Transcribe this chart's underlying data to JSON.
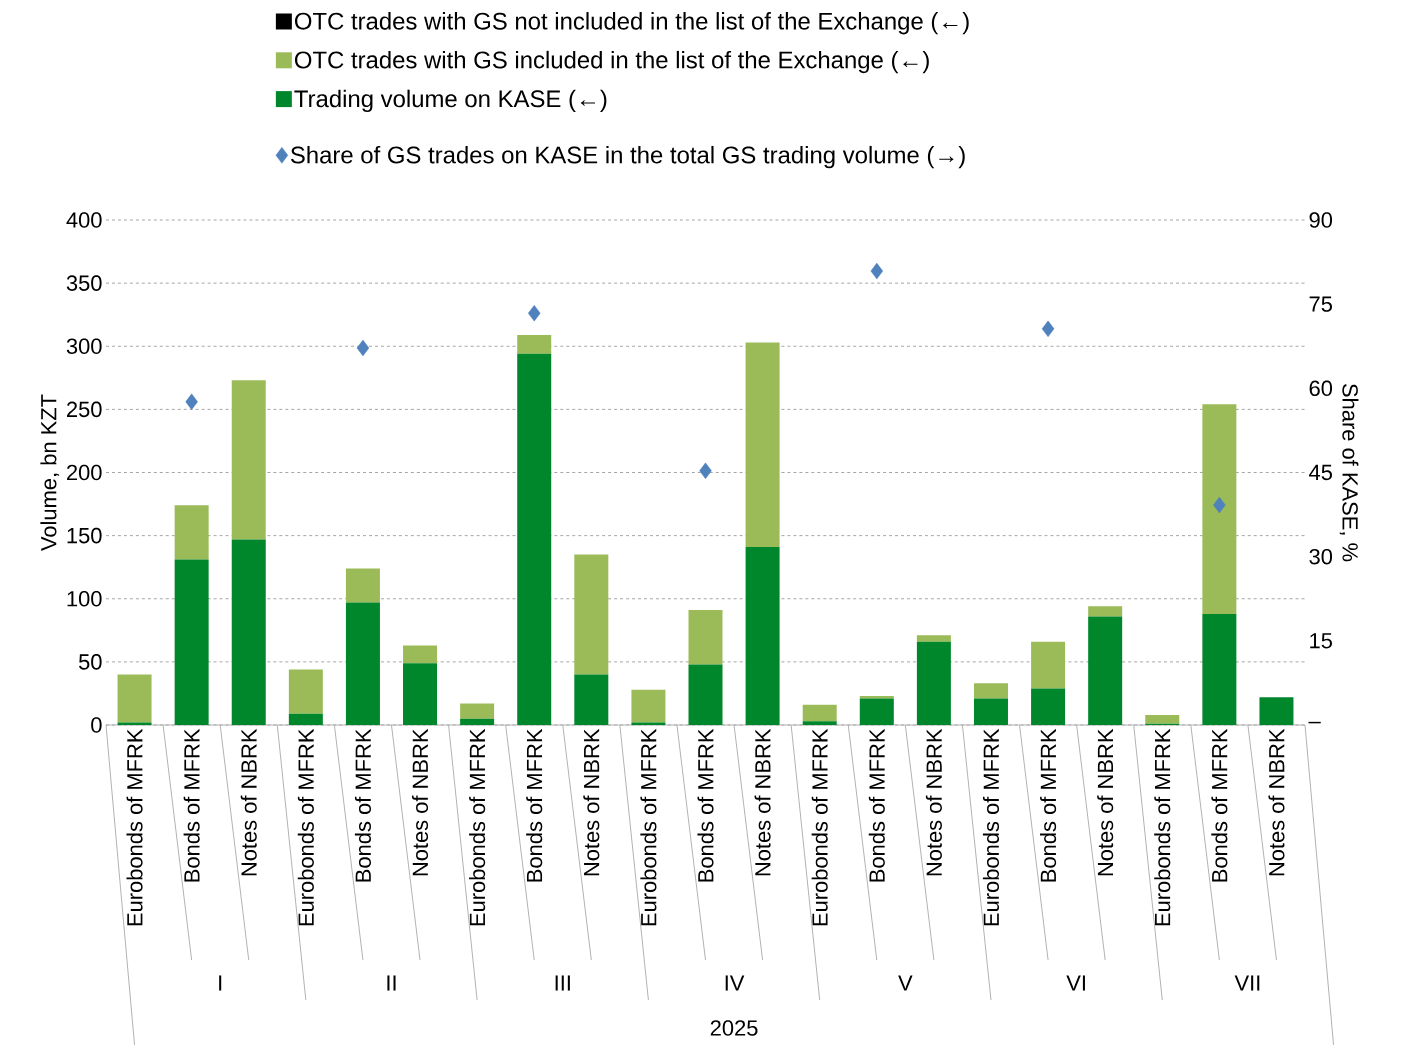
{
  "chart_data": {
    "type": "bar",
    "stacked": true,
    "grid": "y",
    "legend": "top",
    "categories": [
      "Eurobonds of MFRK",
      "Bonds of MFRK",
      "Notes of NBRK",
      "Eurobonds of MFRK",
      "Bonds of MFRK",
      "Notes of NBRK",
      "Eurobonds of MFRK",
      "Bonds of MFRK",
      "Notes of NBRK",
      "Eurobonds of MFRK",
      "Bonds of MFRK",
      "Notes of NBRK",
      "Eurobonds of MFRK",
      "Bonds of MFRK",
      "Notes of NBRK",
      "Eurobonds of MFRK",
      "Bonds of MFRK",
      "Notes of NBRK",
      "Eurobonds of MFRK",
      "Bonds of MFRK",
      "Notes of NBRK"
    ],
    "annotations": [
      "I",
      "II",
      "III",
      "IV",
      "V",
      "VI",
      "VII"
    ],
    "xlabel": "2025",
    "ylabel": "Volume, bn KZT",
    "y2label": "Share of KASE, %",
    "ylim": [
      0,
      400
    ],
    "yticks": [
      0,
      50,
      100,
      150,
      200,
      250,
      300,
      350,
      400
    ],
    "y2lim": [
      0,
      90
    ],
    "y2ticks": [
      {
        "value": 0,
        "label": "–"
      },
      15,
      30,
      45,
      60,
      75,
      90
    ],
    "series": [
      {
        "name": "Trading volume on KASE (←)",
        "color": "#00862b",
        "values": [
          2,
          131,
          147,
          9,
          97,
          49,
          5,
          294,
          40,
          2,
          48,
          141,
          3,
          21,
          66,
          21,
          29,
          86,
          1,
          88,
          22
        ]
      },
      {
        "name": "OTC trades with GS included in the list of the Exchange (←)",
        "color": "#9bbb59",
        "values": [
          38,
          43,
          126,
          35,
          27,
          14,
          12,
          15,
          95,
          26,
          43,
          162,
          13,
          2,
          5,
          12,
          37,
          8,
          7,
          166,
          0
        ]
      },
      {
        "name": "OTC trades with GS not included in the list of the Exchange (←)",
        "color": "#000000",
        "values": [
          0,
          0,
          0,
          0,
          0,
          0,
          0,
          0,
          0,
          0,
          0,
          0,
          0,
          0,
          0,
          0,
          0,
          0,
          0,
          0,
          0
        ]
      },
      {
        "name": "Share of GS trades on KASE in the  total GS trading volume (→)",
        "type": "scatter",
        "axis": "y2",
        "marker": "diamond",
        "color": "#4f81bd",
        "values": [
          null,
          57.6,
          null,
          null,
          67.2,
          null,
          null,
          73.4,
          null,
          null,
          45.3,
          null,
          null,
          80.9,
          null,
          null,
          70.6,
          null,
          null,
          39.2,
          null
        ]
      }
    ]
  }
}
